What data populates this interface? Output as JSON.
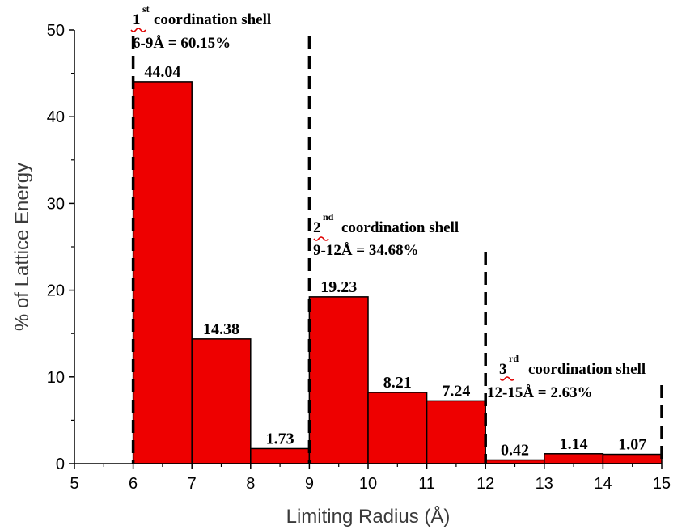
{
  "chart_data": {
    "type": "bar",
    "xlabel": "Limiting Radius (Å)",
    "ylabel": "% of Lattice Energy",
    "xlim": [
      5,
      15
    ],
    "ylim": [
      0,
      50
    ],
    "x_ticks": [
      "5",
      "6",
      "7",
      "8",
      "9",
      "10",
      "11",
      "12",
      "13",
      "14",
      "15"
    ],
    "y_ticks": [
      "0",
      "10",
      "20",
      "30",
      "40",
      "50"
    ],
    "bins": [
      {
        "from": 6,
        "to": 7,
        "value": 44.04,
        "label": "44.04"
      },
      {
        "from": 7,
        "to": 8,
        "value": 14.38,
        "label": "14.38"
      },
      {
        "from": 8,
        "to": 9,
        "value": 1.73,
        "label": "1.73"
      },
      {
        "from": 9,
        "to": 10,
        "value": 19.23,
        "label": "19.23"
      },
      {
        "from": 10,
        "to": 11,
        "value": 8.21,
        "label": "8.21"
      },
      {
        "from": 11,
        "to": 12,
        "value": 7.24,
        "label": "7.24"
      },
      {
        "from": 12,
        "to": 13,
        "value": 0.42,
        "label": "0.42"
      },
      {
        "from": 13,
        "to": 14,
        "value": 1.14,
        "label": "1.14"
      },
      {
        "from": 14,
        "to": 15,
        "value": 1.07,
        "label": "1.07"
      }
    ],
    "bar_color": "#ee0000",
    "grid": false,
    "shell_boundaries": [
      6,
      9,
      12,
      15
    ],
    "annotations": [
      {
        "ordinal": "1",
        "suffix": "st",
        "title": "coordination shell",
        "range_text": "6-9Å = 60.15%"
      },
      {
        "ordinal": "2",
        "suffix": "nd",
        "title": "coordination shell",
        "range_text": "9-12Å = 34.68%"
      },
      {
        "ordinal": "3",
        "suffix": "rd",
        "title": "coordination shell",
        "range_text": "12-15Å = 2.63%"
      }
    ]
  }
}
